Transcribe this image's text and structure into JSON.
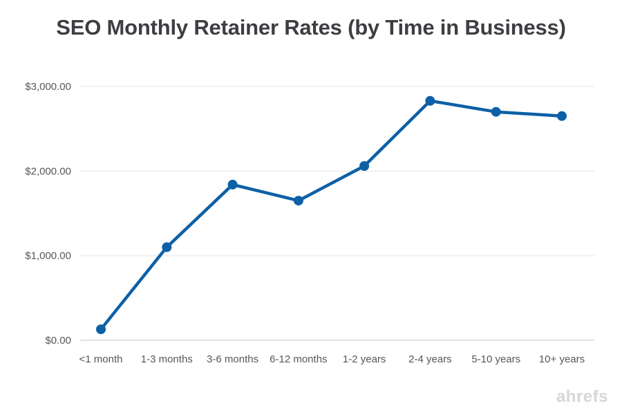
{
  "watermark": {
    "label": "ahrefs",
    "color": "#d6d6d6"
  },
  "chart_data": {
    "type": "line",
    "title": "SEO Monthly Retainer Rates (by Time in Business)",
    "categories": [
      "<1 month",
      "1-3 months",
      "3-6 months",
      "6-12 months",
      "1-2 years",
      "2-4 years",
      "5-10 years",
      "10+ years"
    ],
    "values": [
      130,
      1100,
      1840,
      1650,
      2060,
      2830,
      2700,
      2650
    ],
    "xlabel": "",
    "ylabel": "",
    "ylim": [
      0,
      3000
    ],
    "yticks": [
      {
        "value": 0,
        "label": "$0.00"
      },
      {
        "value": 1000,
        "label": "$1,000.00"
      },
      {
        "value": 2000,
        "label": "$2,000.00"
      },
      {
        "value": 3000,
        "label": "$3,000.00"
      }
    ],
    "grid": "horizontal",
    "legend": "none",
    "colors": {
      "line": "#0d60a6",
      "marker": "#0d60a6",
      "grid": "#f0f0f0",
      "axis": "#e3e3e3",
      "title": "#3d3e42",
      "tick": "#55575c"
    }
  }
}
